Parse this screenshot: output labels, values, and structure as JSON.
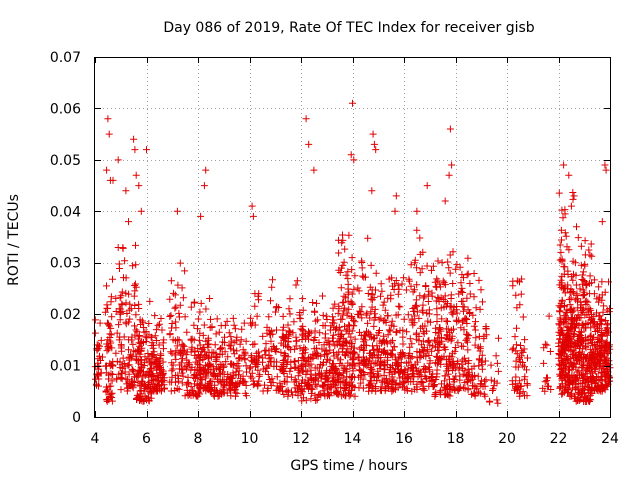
{
  "chart_data": {
    "type": "scatter",
    "title": "Day 086 of 2019, Rate Of TEC Index for receiver gisb",
    "xlabel": "GPS time / hours",
    "ylabel": "ROTI / TECUs",
    "xlim": [
      4,
      24
    ],
    "ylim": [
      0,
      0.07
    ],
    "xticks": [
      "4",
      "6",
      "8",
      "10",
      "12",
      "14",
      "16",
      "18",
      "20",
      "22",
      "24"
    ],
    "yticks": [
      "0",
      "0.01",
      "0.02",
      "0.03",
      "0.04",
      "0.05",
      "0.06",
      "0.07"
    ],
    "grid": true,
    "marker": "+",
    "color": "#e00000",
    "series": [
      {
        "name": "ROTI",
        "clusters": [
          {
            "x_range": [
              4.0,
              4.3
            ],
            "y_range": [
              0.006,
              0.023
            ],
            "count": 30
          },
          {
            "x_range": [
              4.4,
              4.7
            ],
            "y_range": [
              0.003,
              0.03
            ],
            "count": 60
          },
          {
            "x_range": [
              4.8,
              5.6
            ],
            "y_range": [
              0.005,
              0.036
            ],
            "count": 110
          },
          {
            "x_range": [
              5.6,
              6.2
            ],
            "y_range": [
              0.003,
              0.024
            ],
            "count": 120
          },
          {
            "x_range": [
              6.2,
              6.7
            ],
            "y_range": [
              0.005,
              0.021
            ],
            "count": 90
          },
          {
            "x_range": [
              6.9,
              7.5
            ],
            "y_range": [
              0.005,
              0.035
            ],
            "count": 70
          },
          {
            "x_range": [
              7.5,
              8.1
            ],
            "y_range": [
              0.004,
              0.026
            ],
            "count": 70
          },
          {
            "x_range": [
              8.0,
              8.5
            ],
            "y_range": [
              0.005,
              0.024
            ],
            "count": 80
          },
          {
            "x_range": [
              8.5,
              9.1
            ],
            "y_range": [
              0.004,
              0.022
            ],
            "count": 80
          },
          {
            "x_range": [
              9.1,
              9.9
            ],
            "y_range": [
              0.004,
              0.02
            ],
            "count": 90
          },
          {
            "x_range": [
              10.0,
              10.4
            ],
            "y_range": [
              0.006,
              0.028
            ],
            "count": 45
          },
          {
            "x_range": [
              10.5,
              11.3
            ],
            "y_range": [
              0.005,
              0.029
            ],
            "count": 75
          },
          {
            "x_range": [
              11.3,
              12.0
            ],
            "y_range": [
              0.004,
              0.03
            ],
            "count": 90
          },
          {
            "x_range": [
              12.0,
              12.7
            ],
            "y_range": [
              0.003,
              0.026
            ],
            "count": 110
          },
          {
            "x_range": [
              12.7,
              13.4
            ],
            "y_range": [
              0.004,
              0.024
            ],
            "count": 110
          },
          {
            "x_range": [
              13.4,
              14.1
            ],
            "y_range": [
              0.004,
              0.038
            ],
            "count": 170
          },
          {
            "x_range": [
              14.2,
              14.9
            ],
            "y_range": [
              0.005,
              0.036
            ],
            "count": 120
          },
          {
            "x_range": [
              14.9,
              15.7
            ],
            "y_range": [
              0.005,
              0.032
            ],
            "count": 130
          },
          {
            "x_range": [
              15.7,
              16.4
            ],
            "y_range": [
              0.005,
              0.03
            ],
            "count": 100
          },
          {
            "x_range": [
              16.4,
              17.1
            ],
            "y_range": [
              0.005,
              0.038
            ],
            "count": 110
          },
          {
            "x_range": [
              17.1,
              17.8
            ],
            "y_range": [
              0.004,
              0.037
            ],
            "count": 130
          },
          {
            "x_range": [
              17.8,
              18.5
            ],
            "y_range": [
              0.005,
              0.036
            ],
            "count": 110
          },
          {
            "x_range": [
              18.5,
              19.2
            ],
            "y_range": [
              0.004,
              0.03
            ],
            "count": 70
          },
          {
            "x_range": [
              19.3,
              19.7
            ],
            "y_range": [
              0.002,
              0.023
            ],
            "count": 15
          },
          {
            "x_range": [
              20.2,
              20.8
            ],
            "y_range": [
              0.004,
              0.032
            ],
            "count": 60
          },
          {
            "x_range": [
              21.3,
              21.7
            ],
            "y_range": [
              0.005,
              0.02
            ],
            "count": 15
          },
          {
            "x_range": [
              22.0,
              22.6
            ],
            "y_range": [
              0.004,
              0.045
            ],
            "count": 260
          },
          {
            "x_range": [
              22.6,
              23.3
            ],
            "y_range": [
              0.003,
              0.038
            ],
            "count": 260
          },
          {
            "x_range": [
              23.3,
              24.0
            ],
            "y_range": [
              0.005,
              0.029
            ],
            "count": 220
          }
        ],
        "points": [
          [
            4.5,
            0.058
          ],
          [
            4.55,
            0.055
          ],
          [
            4.45,
            0.048
          ],
          [
            4.6,
            0.046
          ],
          [
            4.9,
            0.05
          ],
          [
            4.7,
            0.046
          ],
          [
            5.2,
            0.044
          ],
          [
            5.5,
            0.054
          ],
          [
            5.55,
            0.052
          ],
          [
            5.6,
            0.047
          ],
          [
            5.7,
            0.045
          ],
          [
            6.0,
            0.052
          ],
          [
            5.8,
            0.04
          ],
          [
            5.3,
            0.038
          ],
          [
            7.2,
            0.04
          ],
          [
            8.3,
            0.048
          ],
          [
            8.25,
            0.045
          ],
          [
            8.1,
            0.039
          ],
          [
            10.1,
            0.041
          ],
          [
            10.15,
            0.039
          ],
          [
            12.2,
            0.058
          ],
          [
            12.3,
            0.053
          ],
          [
            12.5,
            0.048
          ],
          [
            14.0,
            0.061
          ],
          [
            13.95,
            0.051
          ],
          [
            14.05,
            0.05
          ],
          [
            14.8,
            0.055
          ],
          [
            14.85,
            0.053
          ],
          [
            14.9,
            0.052
          ],
          [
            14.75,
            0.044
          ],
          [
            15.7,
            0.043
          ],
          [
            15.65,
            0.04
          ],
          [
            16.5,
            0.04
          ],
          [
            16.9,
            0.045
          ],
          [
            17.8,
            0.056
          ],
          [
            17.85,
            0.049
          ],
          [
            17.75,
            0.047
          ],
          [
            17.6,
            0.042
          ],
          [
            22.2,
            0.049
          ],
          [
            22.4,
            0.047
          ],
          [
            22.6,
            0.043
          ],
          [
            22.5,
            0.041
          ],
          [
            23.8,
            0.049
          ],
          [
            23.85,
            0.048
          ],
          [
            23.7,
            0.038
          ],
          [
            22.7,
            0.037
          ]
        ]
      }
    ]
  }
}
